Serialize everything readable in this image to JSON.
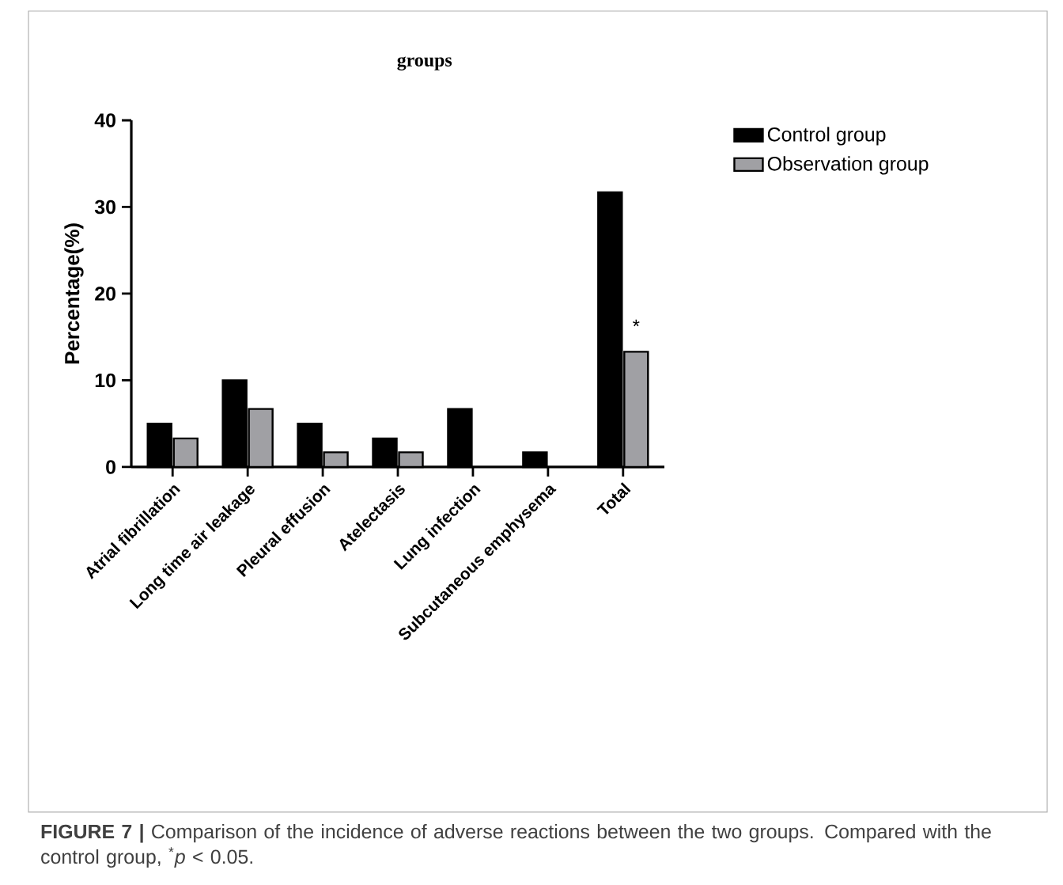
{
  "chart_data": {
    "type": "bar",
    "title": "groups",
    "ylabel": "Percentage(%)",
    "categories": [
      "Atrial fibrillation",
      "Long time air leakage",
      "Pleural effusion",
      "Atelectasis",
      "Lung infection",
      "Subcutaneous emphysema",
      "Total"
    ],
    "series": [
      {
        "name": "Control group",
        "color": "#000000",
        "values": [
          5,
          10,
          5,
          3.3,
          6.7,
          1.7,
          31.7
        ]
      },
      {
        "name": "Observation group",
        "color": "#a0a0a4",
        "values": [
          3.3,
          6.7,
          1.7,
          1.7,
          0,
          0,
          13.3
        ]
      }
    ],
    "ylim": [
      0,
      40
    ],
    "yticks": [
      0,
      10,
      20,
      30,
      40
    ],
    "legend": "top right",
    "annotations": [
      {
        "text": "*",
        "x": "Total",
        "y": 15.5
      },
      "**FIGURE 7 |** Comparison of the incidence of adverse reactions between the two groups. Compared with the control group, $^{*}$*p* < 0.05."
    ]
  }
}
